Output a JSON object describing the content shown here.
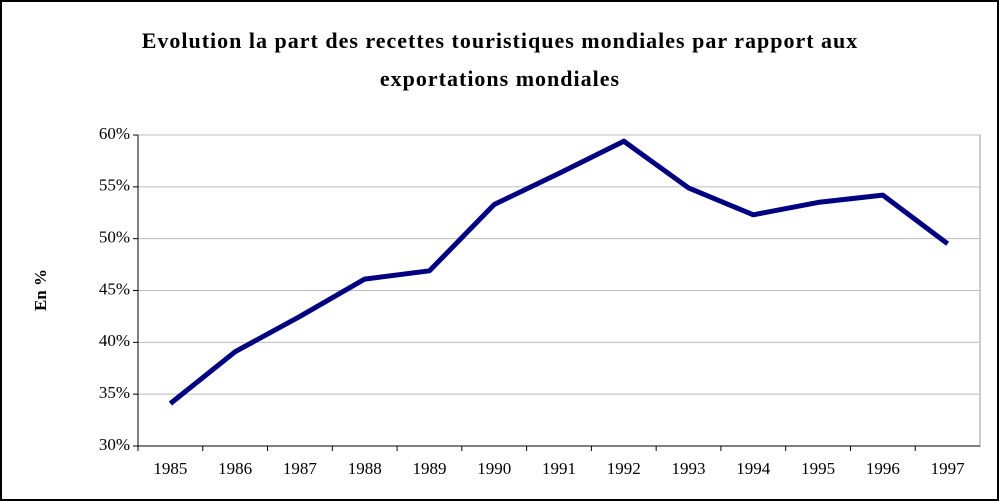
{
  "chart_data": {
    "type": "line",
    "title": "Evolution la part des recettes touristiques mondiales par rapport aux exportations mondiales",
    "y_label": "En %",
    "categories": [
      "1985",
      "1986",
      "1987",
      "1988",
      "1989",
      "1990",
      "1991",
      "1992",
      "1993",
      "1994",
      "1995",
      "1996",
      "1997"
    ],
    "series": [
      {
        "color": "#000080",
        "values": [
          34.1,
          39.1,
          42.5,
          46.1,
          46.9,
          53.3,
          56.3,
          59.4,
          54.9,
          52.3,
          53.5,
          54.2,
          49.5
        ]
      }
    ],
    "ylim": [
      30,
      60
    ],
    "yticks": [
      {
        "value": 30,
        "label": "30%"
      },
      {
        "value": 35,
        "label": "35%"
      },
      {
        "value": 40,
        "label": "40%"
      },
      {
        "value": 45,
        "label": "45%"
      },
      {
        "value": 50,
        "label": "50%"
      },
      {
        "value": 55,
        "label": "55%"
      },
      {
        "value": 60,
        "label": "60%"
      }
    ],
    "grid": true
  }
}
